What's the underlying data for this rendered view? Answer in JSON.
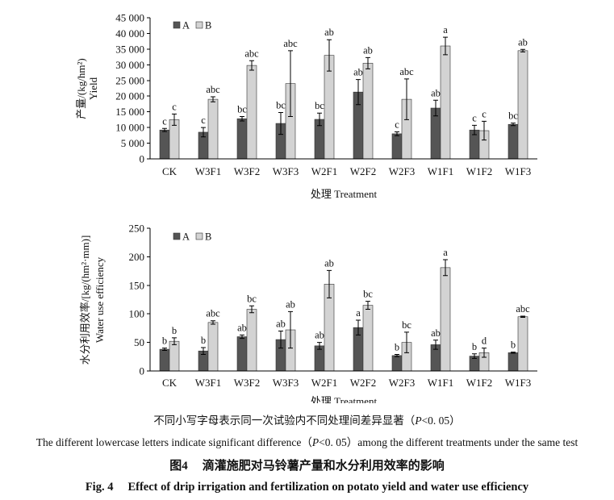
{
  "figure": {
    "note_zh": {
      "pre": "不同小写字母表示同一次试验内不同处理间差异显著（",
      "p": "P",
      "post": "<0. 05）"
    },
    "note_en": {
      "pre": "The different lowercase letters indicate significant difference（",
      "p": "P",
      "post": "<0. 05）among the different treatments under the same test"
    },
    "caption_zh": {
      "label": "图4",
      "text": "滴灌施肥对马铃薯产量和水分利用效率的影响"
    },
    "caption_en": {
      "label": "Fig. 4",
      "text": "Effect of drip irrigation and fertilization on potato yield and water use efficiency"
    }
  },
  "chart_data": [
    {
      "type": "bar",
      "ylabel": "产量/(kg/hm²)",
      "ylabel_en": "Yield",
      "xlabel": "处理 Treatment",
      "categories": [
        "CK",
        "W3F1",
        "W3F2",
        "W3F3",
        "W2F1",
        "W2F2",
        "W2F3",
        "W1F1",
        "W1F2",
        "W1F3"
      ],
      "ylim": [
        0,
        45000
      ],
      "yticks": [
        0,
        5000,
        10000,
        15000,
        20000,
        25000,
        30000,
        35000,
        40000,
        45000
      ],
      "ytick_labels": [
        "0",
        "5 000",
        "10 000",
        "15 000",
        "20 000",
        "25 000",
        "30 000",
        "35 000",
        "40 000",
        "45 000"
      ],
      "grid": false,
      "legend": "top-left",
      "series": [
        {
          "name": "A",
          "color": "#555555",
          "values": [
            9200,
            8500,
            12800,
            11300,
            12600,
            21300,
            8000,
            16200,
            9200,
            11000
          ],
          "errors": [
            500,
            1500,
            700,
            3500,
            2000,
            4000,
            600,
            2500,
            1500,
            400
          ],
          "letters": [
            "c",
            "c",
            "bc",
            "bc",
            "bc",
            "ab",
            "c",
            "ab",
            "c",
            "bc"
          ]
        },
        {
          "name": "B",
          "color": "#d3d3d3",
          "values": [
            12500,
            19000,
            29800,
            24000,
            33000,
            30500,
            19000,
            36000,
            9000,
            34500
          ],
          "errors": [
            1800,
            800,
            1500,
            10500,
            5000,
            1800,
            6500,
            2800,
            3000,
            400
          ],
          "letters": [
            "c",
            "abc",
            "abc",
            "abc",
            "ab",
            "ab",
            "abc",
            "a",
            "c",
            "ab"
          ]
        }
      ]
    },
    {
      "type": "bar",
      "ylabel": "水分利用效率/[kg/(hm²·mm)]",
      "ylabel_en": "Water use efficiency",
      "xlabel": "处理 Treatment",
      "categories": [
        "CK",
        "W3F1",
        "W3F2",
        "W3F3",
        "W2F1",
        "W2F2",
        "W2F3",
        "W1F1",
        "W1F2",
        "W1F3"
      ],
      "ylim": [
        0,
        250
      ],
      "yticks": [
        0,
        50,
        100,
        150,
        200,
        250
      ],
      "ytick_labels": [
        "0",
        "50",
        "100",
        "150",
        "200",
        "250"
      ],
      "grid": false,
      "legend": "top-left",
      "series": [
        {
          "name": "A",
          "color": "#555555",
          "values": [
            38,
            35,
            60,
            55,
            44,
            76,
            27,
            46,
            26,
            32
          ],
          "errors": [
            2,
            6,
            3,
            15,
            6,
            13,
            2,
            8,
            4,
            1
          ],
          "letters": [
            "b",
            "b",
            "ab",
            "ab",
            "ab",
            "a",
            "b",
            "ab",
            "b",
            "b"
          ]
        },
        {
          "name": "B",
          "color": "#d3d3d3",
          "values": [
            52,
            85,
            108,
            72,
            152,
            115,
            50,
            181,
            32,
            95
          ],
          "errors": [
            6,
            3,
            6,
            32,
            24,
            7,
            18,
            14,
            8,
            1
          ],
          "letters": [
            "b",
            "abc",
            "bc",
            "ab",
            "ab",
            "bc",
            "bc",
            "a",
            "d",
            "abc"
          ]
        }
      ]
    }
  ]
}
